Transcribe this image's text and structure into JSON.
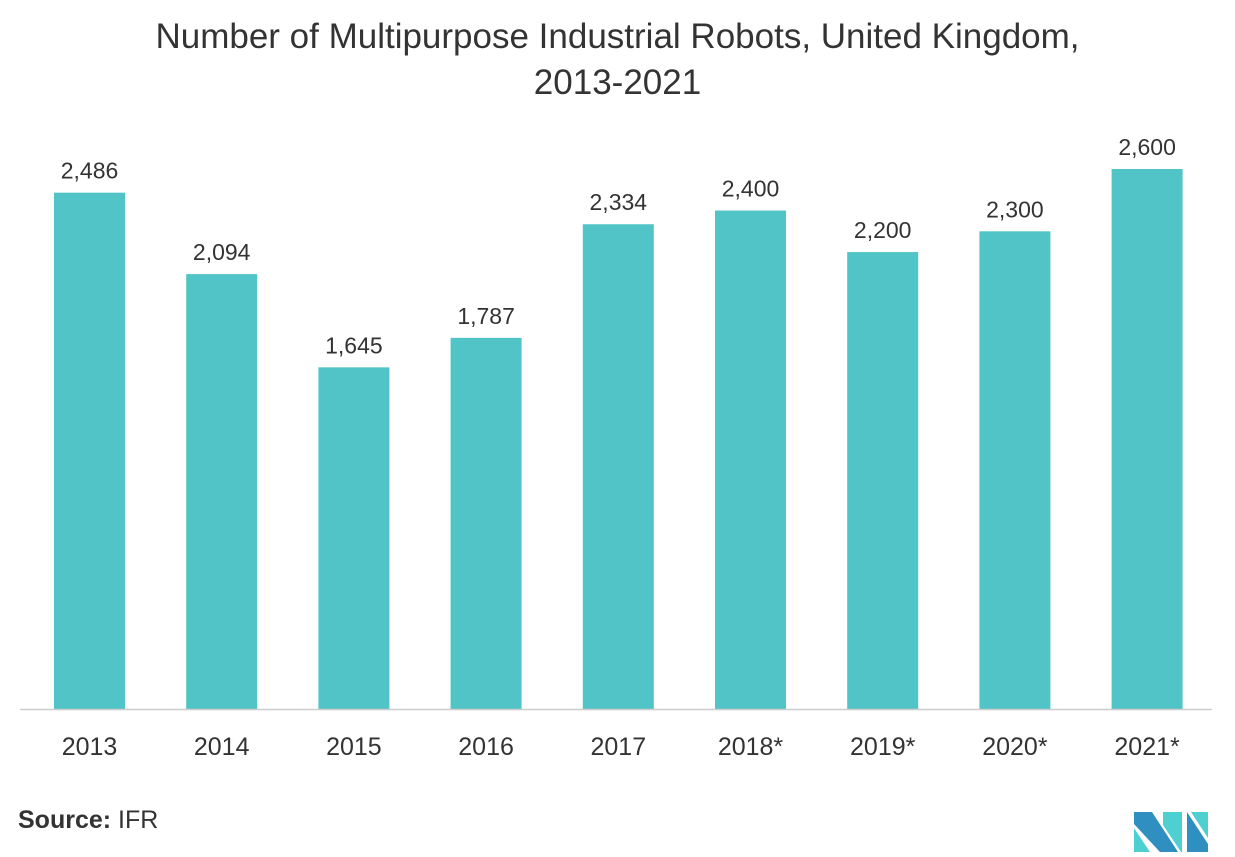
{
  "chart_data": {
    "type": "bar",
    "title_line1": "Number of Multipurpose Industrial Robots, United Kingdom,",
    "title_line2": "2013-2021",
    "categories": [
      "2013",
      "2014",
      "2015",
      "2016",
      "2017",
      "2018*",
      "2019*",
      "2020*",
      "2021*"
    ],
    "values": [
      2486,
      2094,
      1645,
      1787,
      2334,
      2400,
      2200,
      2300,
      2600
    ],
    "value_labels": [
      "2,486",
      "2,094",
      "1,645",
      "1,787",
      "2,334",
      "2,400",
      "2,200",
      "2,300",
      "2,600"
    ],
    "xlabel": "",
    "ylabel": "",
    "ylim": [
      0,
      2600
    ],
    "grid": false,
    "bar_color": "#50c4c6"
  },
  "source": {
    "label": "Source:",
    "value": "IFR"
  }
}
